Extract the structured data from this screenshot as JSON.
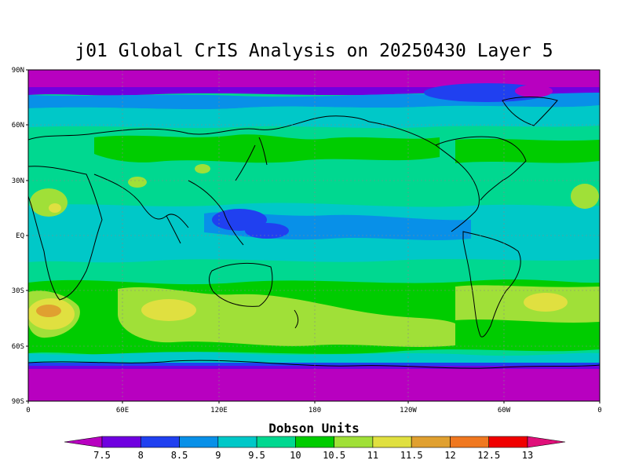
{
  "title": "j01 Global CrIS Analysis on 20250430 Layer 5",
  "map": {
    "lat_ticks": [
      "90N",
      "60N",
      "30N",
      "EQ",
      "30S",
      "60S",
      "90S"
    ],
    "lon_ticks": [
      "0",
      "60E",
      "120E",
      "180",
      "120W",
      "60W",
      "0"
    ]
  },
  "colorbar": {
    "label": "Dobson Units",
    "ticks": [
      "7.5",
      "8",
      "8.5",
      "9",
      "9.5",
      "10",
      "10.5",
      "11",
      "11.5",
      "12",
      "12.5",
      "13"
    ],
    "colors": [
      "#b800c0",
      "#7000e0",
      "#2040f0",
      "#0890e8",
      "#00c8c8",
      "#00d890",
      "#00cc00",
      "#a0e038",
      "#e0e040",
      "#e0a030",
      "#f07820",
      "#f00000",
      "#e0107a"
    ]
  }
}
